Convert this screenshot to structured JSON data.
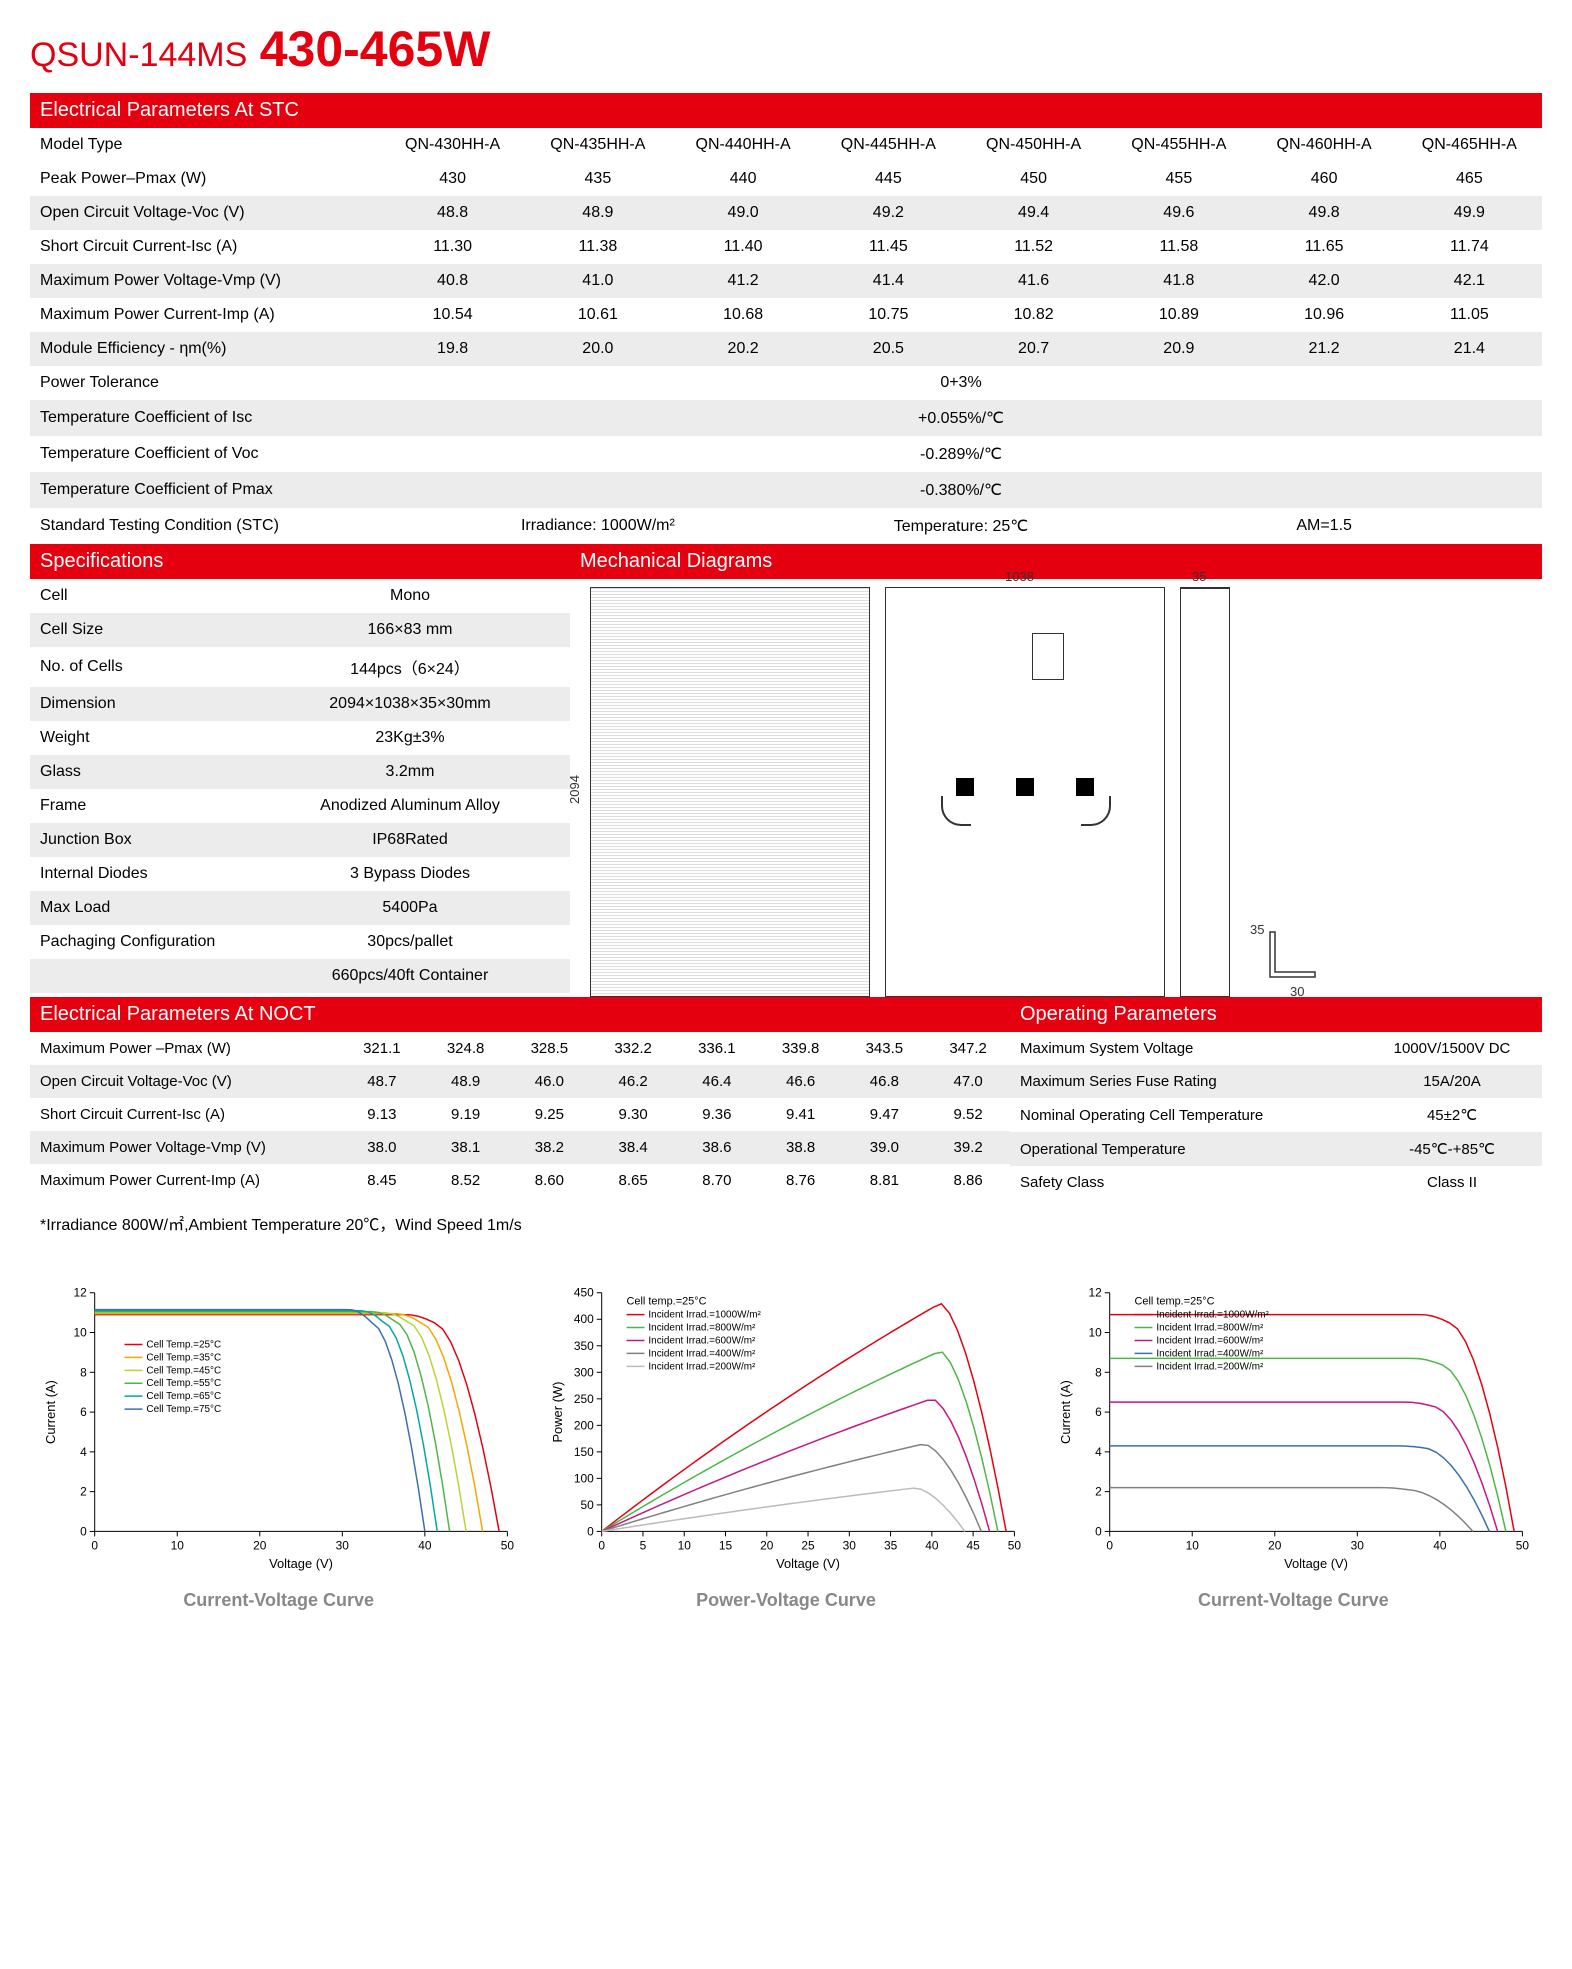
{
  "title": {
    "model": "QSUN-144MS",
    "wattage": "430-465W"
  },
  "headers": {
    "stc": "Electrical Parameters At STC",
    "specs": "Specifications",
    "mech": "Mechanical Diagrams",
    "noct": "Electrical Parameters At NOCT",
    "oper": "Operating Parameters"
  },
  "stc": {
    "model_type_label": "Model Type",
    "models": [
      "QN-430HH-A",
      "QN-435HH-A",
      "QN-440HH-A",
      "QN-445HH-A",
      "QN-450HH-A",
      "QN-455HH-A",
      "QN-460HH-A",
      "QN-465HH-A"
    ],
    "rows": [
      {
        "label": "Peak Power–Pmax (W)",
        "vals": [
          "430",
          "435",
          "440",
          "445",
          "450",
          "455",
          "460",
          "465"
        ]
      },
      {
        "label": "Open Circuit Voltage-Voc (V)",
        "vals": [
          "48.8",
          "48.9",
          "49.0",
          "49.2",
          "49.4",
          "49.6",
          "49.8",
          "49.9"
        ]
      },
      {
        "label": "Short Circuit Current-Isc (A)",
        "vals": [
          "11.30",
          "11.38",
          "11.40",
          "11.45",
          "11.52",
          "11.58",
          "11.65",
          "11.74"
        ]
      },
      {
        "label": "Maximum Power Voltage-Vmp (V)",
        "vals": [
          "40.8",
          "41.0",
          "41.2",
          "41.4",
          "41.6",
          "41.8",
          "42.0",
          "42.1"
        ]
      },
      {
        "label": "Maximum Power Current-Imp (A)",
        "vals": [
          "10.54",
          "10.61",
          "10.68",
          "10.75",
          "10.82",
          "10.89",
          "10.96",
          "11.05"
        ]
      },
      {
        "label": "Module Efficiency - ηm(%)",
        "vals": [
          "19.8",
          "20.0",
          "20.2",
          "20.5",
          "20.7",
          "20.9",
          "21.2",
          "21.4"
        ]
      }
    ],
    "merged": [
      {
        "label": "Power   Tolerance",
        "val": "0+3%"
      },
      {
        "label": "Temperature Coefficient of Isc",
        "val": "+0.055%/℃"
      },
      {
        "label": "Temperature Coefficient of Voc",
        "val": "-0.289%/℃"
      },
      {
        "label": "Temperature Coefficient of Pmax",
        "val": "-0.380%/℃"
      }
    ],
    "stc_cond": {
      "label": "Standard Testing Condition (STC)",
      "irr": "Irradiance: 1000W/m²",
      "temp": "Temperature: 25℃",
      "am": "AM=1.5"
    }
  },
  "specs": [
    {
      "label": "Cell",
      "val": "Mono"
    },
    {
      "label": "Cell Size",
      "val": "166×83 mm"
    },
    {
      "label": "No. of Cells",
      "val": "144pcs（6×24）"
    },
    {
      "label": "Dimension",
      "val": "2094×1038×35×30mm"
    },
    {
      "label": "Weight",
      "val": "23Kg±3%"
    },
    {
      "label": "Glass",
      "val": "3.2mm"
    },
    {
      "label": "Frame",
      "val": "Anodized Aluminum Alloy"
    },
    {
      "label": "Junction Box",
      "val": "IP68Rated"
    },
    {
      "label": "Internal Diodes",
      "val": "3 Bypass Diodes"
    },
    {
      "label": "Max Load",
      "val": "5400Pa"
    },
    {
      "label": "Pachaging Configuration",
      "val": "30pcs/pallet"
    },
    {
      "label": "",
      "val": "660pcs/40ft Container"
    }
  ],
  "diagrams": {
    "width": "1038",
    "height": "2094",
    "depth": "35",
    "frame": "30"
  },
  "noct": [
    {
      "label": "Maximum Power –Pmax (W)",
      "vals": [
        "321.1",
        "324.8",
        "328.5",
        "332.2",
        "336.1",
        "339.8",
        "343.5",
        "347.2"
      ]
    },
    {
      "label": "Open Circuit Voltage-Voc (V)",
      "vals": [
        "48.7",
        "48.9",
        "46.0",
        "46.2",
        "46.4",
        "46.6",
        "46.8",
        "47.0"
      ]
    },
    {
      "label": "Short Circuit Current-Isc (A)",
      "vals": [
        "9.13",
        "9.19",
        "9.25",
        "9.30",
        "9.36",
        "9.41",
        "9.47",
        "9.52"
      ]
    },
    {
      "label": "Maximum Power Voltage-Vmp (V)",
      "vals": [
        "38.0",
        "38.1",
        "38.2",
        "38.4",
        "38.6",
        "38.8",
        "39.0",
        "39.2"
      ]
    },
    {
      "label": "Maximum Power Current-Imp (A)",
      "vals": [
        "8.45",
        "8.52",
        "8.60",
        "8.65",
        "8.70",
        "8.76",
        "8.81",
        "8.86"
      ]
    }
  ],
  "oper": [
    {
      "label": "Maximum System Voltage",
      "val": "1000V/1500V DC"
    },
    {
      "label": "Maximum Series Fuse Rating",
      "val": "15A/20A"
    },
    {
      "label": "Nominal Operating Cell Temperature",
      "val": "45±2℃"
    },
    {
      "label": "Operational    Temperature",
      "val": "-45℃-+85℃"
    },
    {
      "label": "Safety Class",
      "val": "Class II"
    }
  ],
  "footnote": "*Irradiance 800W/㎡,Ambient Temperature 20℃，Wind Speed 1m/s",
  "charts": {
    "iv_temp": {
      "title": "Current-Voltage Curve",
      "xlabel": "Voltage (V)",
      "ylabel": "Current (A)",
      "xlim": [
        0,
        50
      ],
      "ylim": [
        0,
        12
      ],
      "xtick": 10,
      "ytick": 2,
      "legend_title": "",
      "series": [
        {
          "label": "Cell Temp.=25°C",
          "color": "#e4000f",
          "isc": 10.9,
          "voc": 49,
          "vmp": 41,
          "imp": 10.5
        },
        {
          "label": "Cell Temp.=35°C",
          "color": "#f7a600",
          "isc": 10.95,
          "voc": 47,
          "vmp": 39.5,
          "imp": 10.5
        },
        {
          "label": "Cell Temp.=45°C",
          "color": "#b8d432",
          "isc": 11.0,
          "voc": 45,
          "vmp": 38,
          "imp": 10.5
        },
        {
          "label": "Cell Temp.=55°C",
          "color": "#4cb648",
          "isc": 11.05,
          "voc": 43,
          "vmp": 36.5,
          "imp": 10.5
        },
        {
          "label": "Cell Temp.=65°C",
          "color": "#00a99d",
          "isc": 11.1,
          "voc": 41.5,
          "vmp": 35,
          "imp": 10.5
        },
        {
          "label": "Cell Temp.=75°C",
          "color": "#3a6fb0",
          "isc": 11.15,
          "voc": 40,
          "vmp": 33.5,
          "imp": 10.5
        }
      ]
    },
    "pv": {
      "title": "Power-Voltage Curve",
      "xlabel": "Voltage (V)",
      "ylabel": "Power (W)",
      "xlim": [
        0,
        50
      ],
      "ylim": [
        0,
        450
      ],
      "xtick": 5,
      "ytick": 50,
      "legend_title": "Cell temp.=25°C",
      "series": [
        {
          "label": "Incident Irrad.=1000W/m²",
          "color": "#e4000f",
          "vmp": 41,
          "pmax": 430,
          "voc": 49
        },
        {
          "label": "Incident Irrad.=800W/m²",
          "color": "#4cb648",
          "vmp": 41,
          "pmax": 340,
          "voc": 48
        },
        {
          "label": "Incident Irrad.=600W/m²",
          "color": "#c71585",
          "vmp": 40,
          "pmax": 250,
          "voc": 47
        },
        {
          "label": "Incident Irrad.=400W/m²",
          "color": "#808080",
          "vmp": 39,
          "pmax": 165,
          "voc": 46
        },
        {
          "label": "Incident Irrad.=200W/m²",
          "color": "#bbb",
          "vmp": 38,
          "pmax": 82,
          "voc": 44
        }
      ]
    },
    "iv_irr": {
      "title": "Current-Voltage Curve",
      "xlabel": "Voltage (V)",
      "ylabel": "Current (A)",
      "xlim": [
        0,
        50
      ],
      "ylim": [
        0,
        12
      ],
      "xtick": 10,
      "ytick": 2,
      "legend_title": "Cell temp.=25°C",
      "series": [
        {
          "label": "Incident Irrad.=1000W/m²",
          "color": "#e4000f",
          "isc": 10.9,
          "voc": 49,
          "vmp": 41,
          "imp": 10.5
        },
        {
          "label": "Incident Irrad.=800W/m²",
          "color": "#4cb648",
          "isc": 8.7,
          "voc": 48,
          "vmp": 40,
          "imp": 8.4
        },
        {
          "label": "Incident Irrad.=600W/m²",
          "color": "#c71585",
          "isc": 6.5,
          "voc": 47,
          "vmp": 39,
          "imp": 6.3
        },
        {
          "label": "Incident Irrad.=400W/m²",
          "color": "#3a6fb0",
          "isc": 4.3,
          "voc": 46,
          "vmp": 38,
          "imp": 4.2
        },
        {
          "label": "Incident Irrad.=200W/m²",
          "color": "#808080",
          "isc": 2.2,
          "voc": 44,
          "vmp": 36,
          "imp": 2.1
        }
      ]
    }
  }
}
